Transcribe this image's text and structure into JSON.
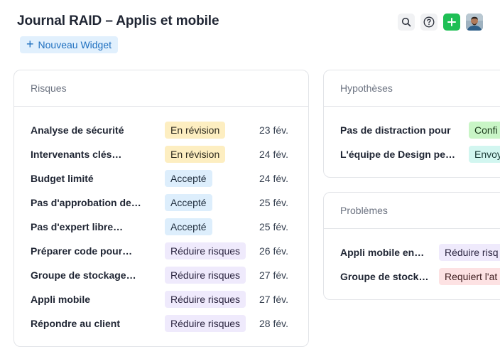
{
  "header": {
    "title": "Journal RAID – Applis et mobile",
    "new_widget_label": "Nouveau Widget",
    "icons": [
      "search-icon",
      "help-icon",
      "add-icon",
      "user-avatar"
    ],
    "accent_color": "#1fbf55"
  },
  "risques": {
    "title": "Risques",
    "rows": [
      {
        "name": "Analyse de sécurité",
        "status": "En révision",
        "date": "23 fév."
      },
      {
        "name": "Intervenants clés…",
        "status": "En révision",
        "date": "24 fév."
      },
      {
        "name": "Budget limité",
        "status": "Accepté",
        "date": "24 fév."
      },
      {
        "name": "Pas d'approbation de…",
        "status": "Accepté",
        "date": "25 fév."
      },
      {
        "name": "Pas d'expert libre…",
        "status": "Accepté",
        "date": "25 fév."
      },
      {
        "name": "Préparer code pour…",
        "status": "Réduire risques",
        "date": "26 fév."
      },
      {
        "name": "Groupe de stockage…",
        "status": "Réduire risques",
        "date": "27 fév."
      },
      {
        "name": "Appli mobile",
        "status": "Réduire risques",
        "date": "27 fév."
      },
      {
        "name": "Répondre au client",
        "status": "Réduire risques",
        "date": "28 fév."
      }
    ]
  },
  "hypotheses": {
    "title": "Hypothèses",
    "rows": [
      {
        "name": "Pas de distraction pour",
        "status": "Confi"
      },
      {
        "name": "L'équipe de Design pe…",
        "status": "Envoy"
      }
    ]
  },
  "problemes": {
    "title": "Problèmes",
    "rows": [
      {
        "name": "Appli mobile en…",
        "status": "Réduire risq"
      },
      {
        "name": "Groupe de stock…",
        "status": "Requiert l'at"
      }
    ]
  }
}
